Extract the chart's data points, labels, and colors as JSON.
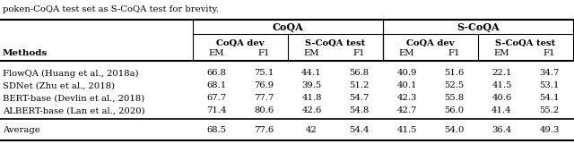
{
  "caption": "poken-CoQA test set as S-CoQA test for brevity.",
  "rows": [
    [
      "FlowQA (Huang et al., 2018a)",
      "66.8",
      "75.1",
      "44.1",
      "56.8",
      "40.9",
      "51.6",
      "22.1",
      "34.7"
    ],
    [
      "SDNet (Zhu et al., 2018)",
      "68.1",
      "76.9",
      "39.5",
      "51.2",
      "40.1",
      "52.5",
      "41.5",
      "53.1"
    ],
    [
      "BERT-base (Devlin et al., 2018)",
      "67.7",
      "77.7",
      "41.8",
      "54.7",
      "42.3",
      "55.8",
      "40.6",
      "54.1"
    ],
    [
      "ALBERT-base (Lan et al., 2020)",
      "71.4",
      "80.6",
      "42.6",
      "54.8",
      "42.7",
      "56.0",
      "41.4",
      "55.2"
    ]
  ],
  "avg_row": [
    "Average",
    "68.5",
    "77.6",
    "42",
    "54.4",
    "41.5",
    "54.0",
    "36.4",
    "49.3"
  ],
  "background_color": "#ffffff",
  "font_size": 7.2,
  "bold_font_size": 7.5
}
